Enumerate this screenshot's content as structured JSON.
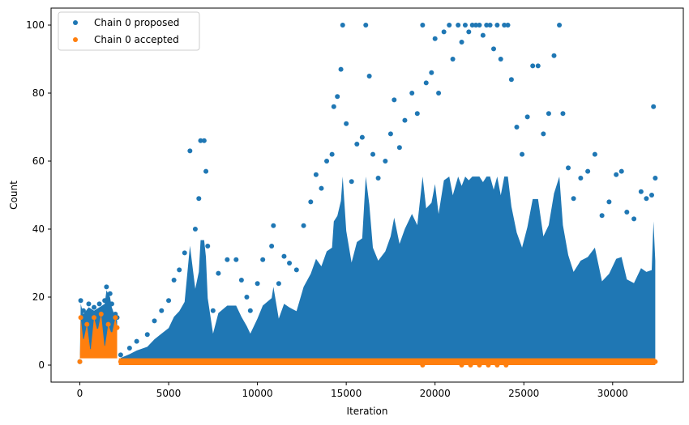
{
  "chart_data": {
    "type": "scatter",
    "title": "",
    "xlabel": "Iteration",
    "ylabel": "Count",
    "xlim": [
      -1620,
      33980
    ],
    "ylim": [
      -5,
      105
    ],
    "xticks": [
      0,
      5000,
      10000,
      15000,
      20000,
      25000,
      30000
    ],
    "yticks": [
      0,
      20,
      40,
      60,
      80,
      100
    ],
    "grid": false,
    "legend_position": "upper-left",
    "colors": {
      "proposed": "#1f77b4",
      "accepted": "#ff7f0e"
    },
    "series": [
      {
        "name": "Chain 0 proposed",
        "color": "#1f77b4",
        "points": [
          [
            0,
            1
          ],
          [
            50,
            19
          ],
          [
            200,
            16
          ],
          [
            500,
            18
          ],
          [
            800,
            17
          ],
          [
            1100,
            18
          ],
          [
            1400,
            19
          ],
          [
            1500,
            23
          ],
          [
            1700,
            21
          ],
          [
            1800,
            18
          ],
          [
            2000,
            15
          ],
          [
            2100,
            14
          ],
          [
            2300,
            3
          ],
          [
            2800,
            5
          ],
          [
            3200,
            7
          ],
          [
            3800,
            9
          ],
          [
            4200,
            13
          ],
          [
            4600,
            16
          ],
          [
            5000,
            19
          ],
          [
            5300,
            25
          ],
          [
            5600,
            28
          ],
          [
            5900,
            33
          ],
          [
            6200,
            63
          ],
          [
            6500,
            40
          ],
          [
            6700,
            49
          ],
          [
            6800,
            66
          ],
          [
            7000,
            66
          ],
          [
            7100,
            57
          ],
          [
            7200,
            35
          ],
          [
            7500,
            16
          ],
          [
            7800,
            27
          ],
          [
            8300,
            31
          ],
          [
            8800,
            31
          ],
          [
            9100,
            25
          ],
          [
            9400,
            20
          ],
          [
            9600,
            16
          ],
          [
            10000,
            24
          ],
          [
            10300,
            31
          ],
          [
            10800,
            35
          ],
          [
            10900,
            41
          ],
          [
            11200,
            24
          ],
          [
            11500,
            32
          ],
          [
            11800,
            30
          ],
          [
            12200,
            28
          ],
          [
            12600,
            41
          ],
          [
            13000,
            48
          ],
          [
            13300,
            56
          ],
          [
            13600,
            52
          ],
          [
            13900,
            60
          ],
          [
            14200,
            62
          ],
          [
            14300,
            76
          ],
          [
            14500,
            79
          ],
          [
            14700,
            87
          ],
          [
            14800,
            100
          ],
          [
            15000,
            71
          ],
          [
            15300,
            54
          ],
          [
            15600,
            65
          ],
          [
            15900,
            67
          ],
          [
            16100,
            100
          ],
          [
            16300,
            85
          ],
          [
            16500,
            62
          ],
          [
            16800,
            55
          ],
          [
            17200,
            60
          ],
          [
            17500,
            68
          ],
          [
            17700,
            78
          ],
          [
            18000,
            64
          ],
          [
            18300,
            72
          ],
          [
            18700,
            80
          ],
          [
            19000,
            74
          ],
          [
            19300,
            100
          ],
          [
            19500,
            83
          ],
          [
            19800,
            86
          ],
          [
            20000,
            96
          ],
          [
            20200,
            80
          ],
          [
            20500,
            98
          ],
          [
            20800,
            100
          ],
          [
            21000,
            90
          ],
          [
            21300,
            100
          ],
          [
            21500,
            95
          ],
          [
            21700,
            100
          ],
          [
            21900,
            98
          ],
          [
            22100,
            100
          ],
          [
            22300,
            100
          ],
          [
            22500,
            100
          ],
          [
            22700,
            97
          ],
          [
            22900,
            100
          ],
          [
            23100,
            100
          ],
          [
            23300,
            93
          ],
          [
            23500,
            100
          ],
          [
            23700,
            90
          ],
          [
            23900,
            100
          ],
          [
            24100,
            100
          ],
          [
            24300,
            84
          ],
          [
            24600,
            70
          ],
          [
            24900,
            62
          ],
          [
            25200,
            73
          ],
          [
            25500,
            88
          ],
          [
            25800,
            88
          ],
          [
            26100,
            68
          ],
          [
            26400,
            74
          ],
          [
            26700,
            91
          ],
          [
            27000,
            100
          ],
          [
            27200,
            74
          ],
          [
            27500,
            58
          ],
          [
            27800,
            49
          ],
          [
            28200,
            55
          ],
          [
            28600,
            57
          ],
          [
            29000,
            62
          ],
          [
            29400,
            44
          ],
          [
            29800,
            48
          ],
          [
            30200,
            56
          ],
          [
            30500,
            57
          ],
          [
            30800,
            45
          ],
          [
            31200,
            43
          ],
          [
            31600,
            51
          ],
          [
            31900,
            49
          ],
          [
            32200,
            50
          ],
          [
            32300,
            76
          ],
          [
            32400,
            55
          ]
        ]
      },
      {
        "name": "Chain 0 accepted",
        "color": "#ff7f0e",
        "points": [
          [
            0,
            1
          ],
          [
            50,
            14
          ],
          [
            200,
            7
          ],
          [
            400,
            12
          ],
          [
            600,
            4
          ],
          [
            800,
            14
          ],
          [
            1000,
            10
          ],
          [
            1200,
            15
          ],
          [
            1400,
            5
          ],
          [
            1600,
            12
          ],
          [
            1800,
            9
          ],
          [
            2000,
            14
          ],
          [
            2100,
            11
          ],
          [
            2300,
            1
          ],
          [
            5000,
            1
          ],
          [
            10000,
            1
          ],
          [
            15000,
            1
          ],
          [
            19300,
            0
          ],
          [
            20000,
            1
          ],
          [
            21500,
            0
          ],
          [
            22000,
            0
          ],
          [
            22500,
            0
          ],
          [
            23000,
            0
          ],
          [
            23500,
            0
          ],
          [
            24000,
            0
          ],
          [
            25000,
            1
          ],
          [
            30000,
            1
          ],
          [
            32400,
            1
          ]
        ]
      }
    ]
  }
}
